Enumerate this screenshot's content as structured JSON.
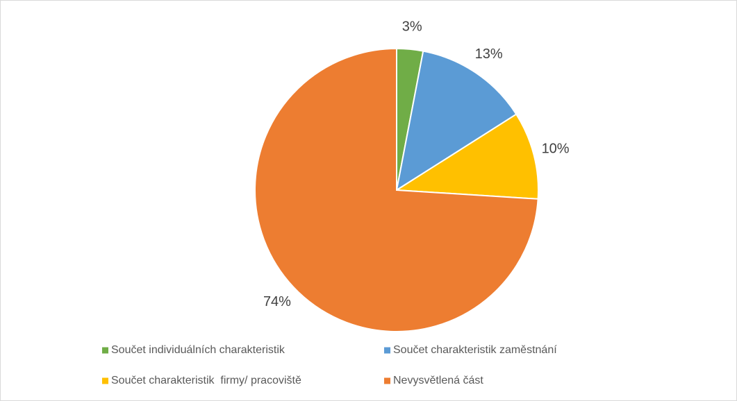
{
  "chart_data": {
    "type": "pie",
    "categories": [
      "Součet individuálních charakteristik",
      "Součet charakteristik zaměstnání",
      "Součet charakteristik  firmy/ pracoviště",
      "Nevysvětlená část"
    ],
    "values": [
      3,
      13,
      10,
      74
    ],
    "value_labels": [
      "3%",
      "13%",
      "10%",
      "74%"
    ],
    "colors": [
      "#70ad47",
      "#5b9bd5",
      "#ffc000",
      "#ed7d31"
    ],
    "legend": "bottom"
  }
}
